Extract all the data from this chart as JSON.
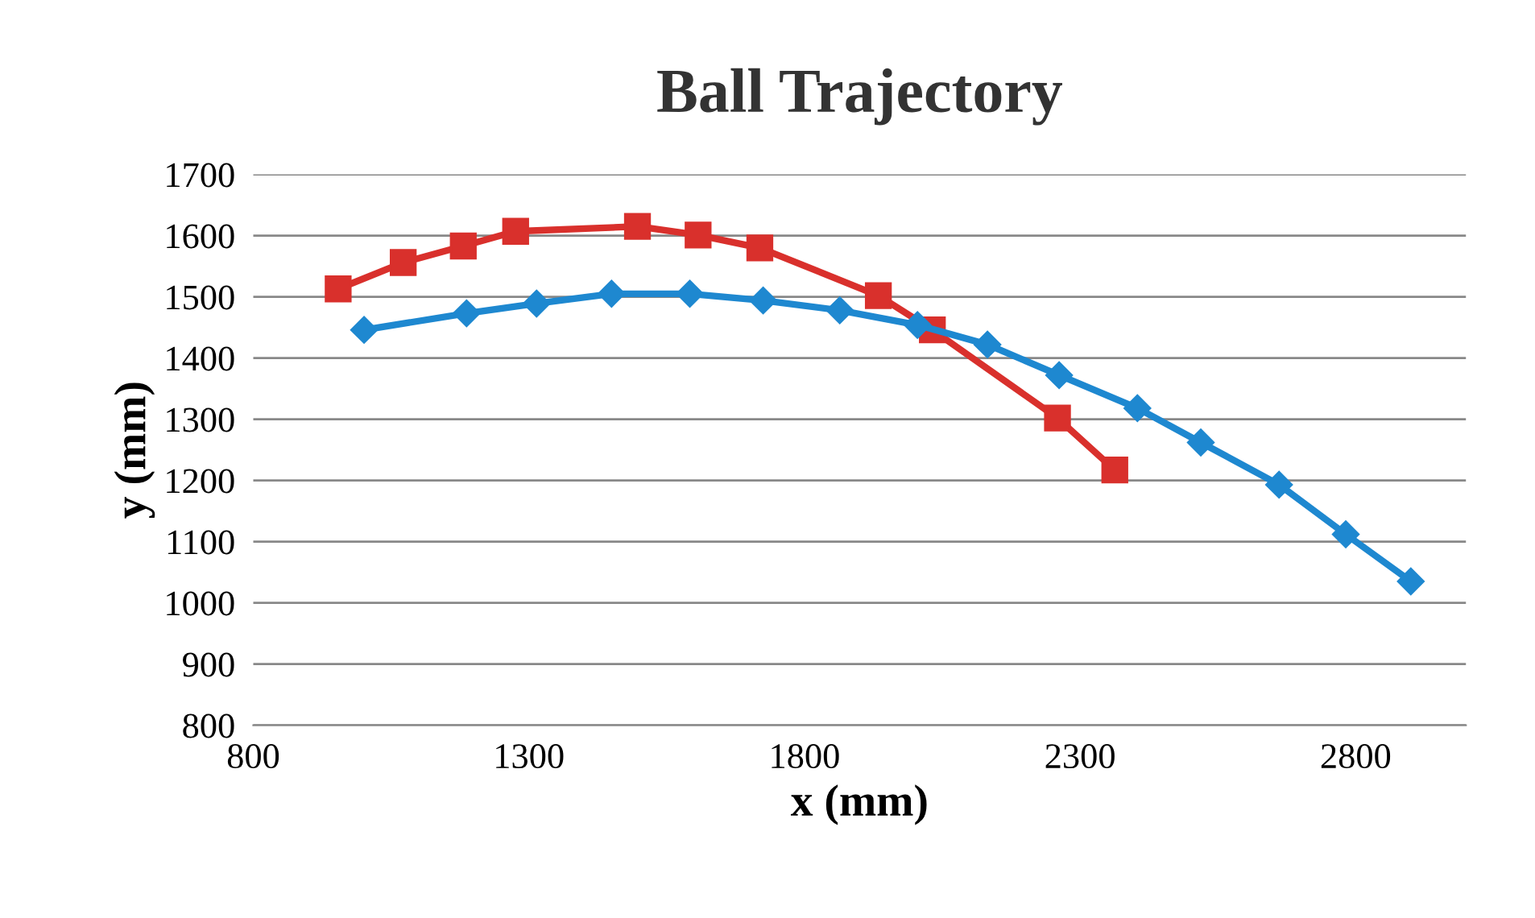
{
  "chart_data": {
    "type": "line",
    "title": "Ball Trajectory",
    "xlabel": "x (mm)",
    "ylabel": "y (mm)",
    "xlim": [
      800,
      3000
    ],
    "xticks": [
      800,
      1300,
      1800,
      2300,
      2800
    ],
    "ylim": [
      800,
      1700
    ],
    "yticks": [
      800,
      900,
      1000,
      1100,
      1200,
      1300,
      1400,
      1500,
      1600,
      1700
    ],
    "grid": "y",
    "legend": false,
    "series": [
      {
        "color": "#d9302c",
        "marker": "square",
        "x": [
          954,
          1072,
          1181,
          1276,
          1497,
          1607,
          1719,
          1934,
          2032,
          2259,
          2363
        ],
        "values": [
          1513,
          1556,
          1583,
          1607,
          1615,
          1601,
          1580,
          1502,
          1446,
          1302,
          1217
        ]
      },
      {
        "color": "#1e88d0",
        "marker": "diamond",
        "x": [
          1001,
          1187,
          1314,
          1450,
          1592,
          1725,
          1864,
          2005,
          2132,
          2262,
          2404,
          2519,
          2661,
          2782,
          2900
        ],
        "values": [
          1446,
          1473,
          1489,
          1505,
          1505,
          1494,
          1478,
          1454,
          1422,
          1372,
          1318,
          1262,
          1193,
          1112,
          1035
        ]
      }
    ]
  }
}
